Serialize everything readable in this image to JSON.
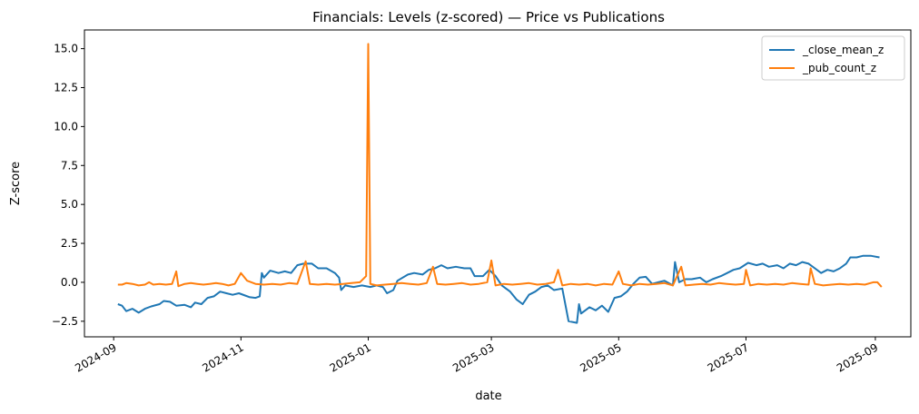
{
  "chart_data": {
    "type": "line",
    "title": "Financials: Levels (z-scored) — Price vs Publications",
    "xlabel": "date",
    "ylabel": "Z-score",
    "xlim": [
      "2024-08-18",
      "2025-09-18"
    ],
    "ylim": [
      -3.5,
      16.2
    ],
    "x_ticks": [
      "2024-09-01",
      "2024-11-01",
      "2025-01-01",
      "2025-03-01",
      "2025-05-01",
      "2025-07-01",
      "2025-09-01"
    ],
    "x_tick_labels": [
      "2024-09",
      "2024-11",
      "2025-01",
      "2025-03",
      "2025-05",
      "2025-07",
      "2025-09"
    ],
    "y_ticks": [
      -2.5,
      0.0,
      2.5,
      5.0,
      7.5,
      10.0,
      12.5,
      15.0
    ],
    "y_tick_labels": [
      "−2.5",
      "0.0",
      "2.5",
      "5.0",
      "7.5",
      "10.0",
      "12.5",
      "15.0"
    ],
    "grid": false,
    "legend_position": "top-right",
    "series": [
      {
        "name": "_close_mean_z",
        "color": "#1f77b4",
        "points": [
          [
            "2024-09-03",
            -1.4
          ],
          [
            "2024-09-05",
            -1.5
          ],
          [
            "2024-09-07",
            -1.85
          ],
          [
            "2024-09-10",
            -1.7
          ],
          [
            "2024-09-13",
            -1.95
          ],
          [
            "2024-09-16",
            -1.7
          ],
          [
            "2024-09-19",
            -1.55
          ],
          [
            "2024-09-23",
            -1.4
          ],
          [
            "2024-09-25",
            -1.2
          ],
          [
            "2024-09-28",
            -1.25
          ],
          [
            "2024-10-01",
            -1.5
          ],
          [
            "2024-10-05",
            -1.45
          ],
          [
            "2024-10-08",
            -1.6
          ],
          [
            "2024-10-10",
            -1.3
          ],
          [
            "2024-10-13",
            -1.4
          ],
          [
            "2024-10-16",
            -1.0
          ],
          [
            "2024-10-19",
            -0.9
          ],
          [
            "2024-10-22",
            -0.6
          ],
          [
            "2024-10-25",
            -0.7
          ],
          [
            "2024-10-28",
            -0.8
          ],
          [
            "2024-10-31",
            -0.7
          ],
          [
            "2024-11-03",
            -0.85
          ],
          [
            "2024-11-05",
            -0.95
          ],
          [
            "2024-11-08",
            -1.0
          ],
          [
            "2024-11-10",
            -0.9
          ],
          [
            "2024-11-11",
            0.6
          ],
          [
            "2024-11-12",
            0.3
          ],
          [
            "2024-11-15",
            0.75
          ],
          [
            "2024-11-19",
            0.6
          ],
          [
            "2024-11-22",
            0.7
          ],
          [
            "2024-11-25",
            0.6
          ],
          [
            "2024-11-28",
            1.1
          ],
          [
            "2024-12-01",
            1.2
          ],
          [
            "2024-12-05",
            1.2
          ],
          [
            "2024-12-08",
            0.9
          ],
          [
            "2024-12-12",
            0.9
          ],
          [
            "2024-12-16",
            0.6
          ],
          [
            "2024-12-18",
            0.3
          ],
          [
            "2024-12-19",
            -0.5
          ],
          [
            "2024-12-21",
            -0.2
          ],
          [
            "2024-12-25",
            -0.3
          ],
          [
            "2024-12-29",
            -0.2
          ],
          [
            "2025-01-02",
            -0.3
          ],
          [
            "2025-01-05",
            -0.2
          ],
          [
            "2025-01-08",
            -0.3
          ],
          [
            "2025-01-10",
            -0.7
          ],
          [
            "2025-01-13",
            -0.5
          ],
          [
            "2025-01-15",
            0.1
          ],
          [
            "2025-01-20",
            0.5
          ],
          [
            "2025-01-23",
            0.6
          ],
          [
            "2025-01-27",
            0.5
          ],
          [
            "2025-01-30",
            0.8
          ],
          [
            "2025-02-02",
            0.9
          ],
          [
            "2025-02-05",
            1.1
          ],
          [
            "2025-02-08",
            0.9
          ],
          [
            "2025-02-12",
            1.0
          ],
          [
            "2025-02-16",
            0.9
          ],
          [
            "2025-02-19",
            0.9
          ],
          [
            "2025-02-21",
            0.4
          ],
          [
            "2025-02-25",
            0.4
          ],
          [
            "2025-02-28",
            0.8
          ],
          [
            "2025-03-03",
            0.4
          ],
          [
            "2025-03-06",
            -0.2
          ],
          [
            "2025-03-10",
            -0.6
          ],
          [
            "2025-03-13",
            -1.1
          ],
          [
            "2025-03-16",
            -1.4
          ],
          [
            "2025-03-19",
            -0.8
          ],
          [
            "2025-03-22",
            -0.6
          ],
          [
            "2025-03-25",
            -0.3
          ],
          [
            "2025-03-28",
            -0.2
          ],
          [
            "2025-03-31",
            -0.5
          ],
          [
            "2025-04-04",
            -0.4
          ],
          [
            "2025-04-07",
            -2.5
          ],
          [
            "2025-04-11",
            -2.6
          ],
          [
            "2025-04-12",
            -1.4
          ],
          [
            "2025-04-13",
            -2.0
          ],
          [
            "2025-04-17",
            -1.6
          ],
          [
            "2025-04-20",
            -1.8
          ],
          [
            "2025-04-23",
            -1.5
          ],
          [
            "2025-04-26",
            -1.9
          ],
          [
            "2025-04-29",
            -1.0
          ],
          [
            "2025-05-02",
            -0.9
          ],
          [
            "2025-05-05",
            -0.6
          ],
          [
            "2025-05-08",
            -0.1
          ],
          [
            "2025-05-11",
            0.3
          ],
          [
            "2025-05-14",
            0.35
          ],
          [
            "2025-05-17",
            -0.1
          ],
          [
            "2025-05-20",
            0.0
          ],
          [
            "2025-05-23",
            0.1
          ],
          [
            "2025-05-27",
            -0.2
          ],
          [
            "2025-05-28",
            1.3
          ],
          [
            "2025-05-30",
            0.0
          ],
          [
            "2025-06-02",
            0.2
          ],
          [
            "2025-06-05",
            0.2
          ],
          [
            "2025-06-09",
            0.3
          ],
          [
            "2025-06-12",
            0.0
          ],
          [
            "2025-06-15",
            0.2
          ],
          [
            "2025-06-19",
            0.4
          ],
          [
            "2025-06-22",
            0.6
          ],
          [
            "2025-06-25",
            0.8
          ],
          [
            "2025-06-28",
            0.9
          ],
          [
            "2025-07-02",
            1.25
          ],
          [
            "2025-07-06",
            1.1
          ],
          [
            "2025-07-09",
            1.2
          ],
          [
            "2025-07-12",
            1.0
          ],
          [
            "2025-07-16",
            1.1
          ],
          [
            "2025-07-19",
            0.9
          ],
          [
            "2025-07-22",
            1.2
          ],
          [
            "2025-07-25",
            1.1
          ],
          [
            "2025-07-28",
            1.3
          ],
          [
            "2025-07-31",
            1.2
          ],
          [
            "2025-08-03",
            0.9
          ],
          [
            "2025-08-06",
            0.6
          ],
          [
            "2025-08-09",
            0.8
          ],
          [
            "2025-08-12",
            0.7
          ],
          [
            "2025-08-15",
            0.9
          ],
          [
            "2025-08-18",
            1.2
          ],
          [
            "2025-08-20",
            1.6
          ],
          [
            "2025-08-23",
            1.6
          ],
          [
            "2025-08-26",
            1.7
          ],
          [
            "2025-08-30",
            1.7
          ],
          [
            "2025-09-03",
            1.6
          ]
        ]
      },
      {
        "name": "_pub_count_z",
        "color": "#ff7f0e",
        "points": [
          [
            "2024-09-03",
            -0.15
          ],
          [
            "2024-09-05",
            -0.15
          ],
          [
            "2024-09-07",
            -0.05
          ],
          [
            "2024-09-10",
            -0.1
          ],
          [
            "2024-09-13",
            -0.2
          ],
          [
            "2024-09-16",
            -0.15
          ],
          [
            "2024-09-18",
            0.0
          ],
          [
            "2024-09-20",
            -0.15
          ],
          [
            "2024-09-23",
            -0.1
          ],
          [
            "2024-09-26",
            -0.15
          ],
          [
            "2024-09-29",
            -0.1
          ],
          [
            "2024-10-01",
            0.7
          ],
          [
            "2024-10-02",
            -0.25
          ],
          [
            "2024-10-05",
            -0.1
          ],
          [
            "2024-10-08",
            -0.05
          ],
          [
            "2024-10-11",
            -0.1
          ],
          [
            "2024-10-14",
            -0.15
          ],
          [
            "2024-10-17",
            -0.1
          ],
          [
            "2024-10-20",
            -0.05
          ],
          [
            "2024-10-23",
            -0.1
          ],
          [
            "2024-10-26",
            -0.2
          ],
          [
            "2024-10-29",
            -0.1
          ],
          [
            "2024-11-01",
            0.6
          ],
          [
            "2024-11-04",
            0.1
          ],
          [
            "2024-11-08",
            -0.1
          ],
          [
            "2024-11-12",
            -0.15
          ],
          [
            "2024-11-16",
            -0.1
          ],
          [
            "2024-11-20",
            -0.15
          ],
          [
            "2024-11-24",
            -0.05
          ],
          [
            "2024-11-28",
            -0.1
          ],
          [
            "2024-12-02",
            1.35
          ],
          [
            "2024-12-04",
            -0.1
          ],
          [
            "2024-12-08",
            -0.15
          ],
          [
            "2024-12-12",
            -0.1
          ],
          [
            "2024-12-16",
            -0.15
          ],
          [
            "2024-12-20",
            -0.1
          ],
          [
            "2024-12-24",
            -0.05
          ],
          [
            "2024-12-28",
            0.0
          ],
          [
            "2024-12-31",
            0.4
          ],
          [
            "2025-01-01",
            15.3
          ],
          [
            "2025-01-02",
            -0.1
          ],
          [
            "2025-01-05",
            -0.2
          ],
          [
            "2025-01-09",
            -0.15
          ],
          [
            "2025-01-13",
            -0.1
          ],
          [
            "2025-01-17",
            -0.05
          ],
          [
            "2025-01-21",
            -0.1
          ],
          [
            "2025-01-25",
            -0.15
          ],
          [
            "2025-01-29",
            -0.05
          ],
          [
            "2025-02-01",
            1.0
          ],
          [
            "2025-02-03",
            -0.1
          ],
          [
            "2025-02-07",
            -0.15
          ],
          [
            "2025-02-11",
            -0.1
          ],
          [
            "2025-02-15",
            -0.05
          ],
          [
            "2025-02-19",
            -0.15
          ],
          [
            "2025-02-23",
            -0.1
          ],
          [
            "2025-02-27",
            0.0
          ],
          [
            "2025-03-01",
            1.4
          ],
          [
            "2025-03-03",
            -0.2
          ],
          [
            "2025-03-07",
            -0.1
          ],
          [
            "2025-03-11",
            -0.15
          ],
          [
            "2025-03-15",
            -0.1
          ],
          [
            "2025-03-19",
            -0.05
          ],
          [
            "2025-03-23",
            -0.15
          ],
          [
            "2025-03-27",
            -0.1
          ],
          [
            "2025-03-31",
            0.0
          ],
          [
            "2025-04-02",
            0.8
          ],
          [
            "2025-04-04",
            -0.2
          ],
          [
            "2025-04-08",
            -0.1
          ],
          [
            "2025-04-12",
            -0.15
          ],
          [
            "2025-04-16",
            -0.1
          ],
          [
            "2025-04-20",
            -0.2
          ],
          [
            "2025-04-24",
            -0.1
          ],
          [
            "2025-04-28",
            -0.15
          ],
          [
            "2025-05-01",
            0.7
          ],
          [
            "2025-05-03",
            -0.1
          ],
          [
            "2025-05-07",
            -0.2
          ],
          [
            "2025-05-11",
            -0.1
          ],
          [
            "2025-05-15",
            -0.15
          ],
          [
            "2025-05-19",
            -0.1
          ],
          [
            "2025-05-23",
            -0.05
          ],
          [
            "2025-05-27",
            -0.2
          ],
          [
            "2025-05-31",
            1.0
          ],
          [
            "2025-06-02",
            -0.2
          ],
          [
            "2025-06-06",
            -0.15
          ],
          [
            "2025-06-10",
            -0.1
          ],
          [
            "2025-06-14",
            -0.15
          ],
          [
            "2025-06-18",
            -0.05
          ],
          [
            "2025-06-22",
            -0.1
          ],
          [
            "2025-06-26",
            -0.15
          ],
          [
            "2025-06-30",
            -0.1
          ],
          [
            "2025-07-01",
            0.8
          ],
          [
            "2025-07-03",
            -0.2
          ],
          [
            "2025-07-07",
            -0.1
          ],
          [
            "2025-07-11",
            -0.15
          ],
          [
            "2025-07-15",
            -0.1
          ],
          [
            "2025-07-19",
            -0.15
          ],
          [
            "2025-07-23",
            -0.05
          ],
          [
            "2025-07-27",
            -0.1
          ],
          [
            "2025-07-31",
            -0.15
          ],
          [
            "2025-08-01",
            0.9
          ],
          [
            "2025-08-03",
            -0.1
          ],
          [
            "2025-08-07",
            -0.2
          ],
          [
            "2025-08-11",
            -0.15
          ],
          [
            "2025-08-15",
            -0.1
          ],
          [
            "2025-08-19",
            -0.15
          ],
          [
            "2025-08-23",
            -0.1
          ],
          [
            "2025-08-27",
            -0.15
          ],
          [
            "2025-08-31",
            0.0
          ],
          [
            "2025-09-02",
            0.0
          ],
          [
            "2025-09-04",
            -0.3
          ]
        ]
      }
    ]
  }
}
